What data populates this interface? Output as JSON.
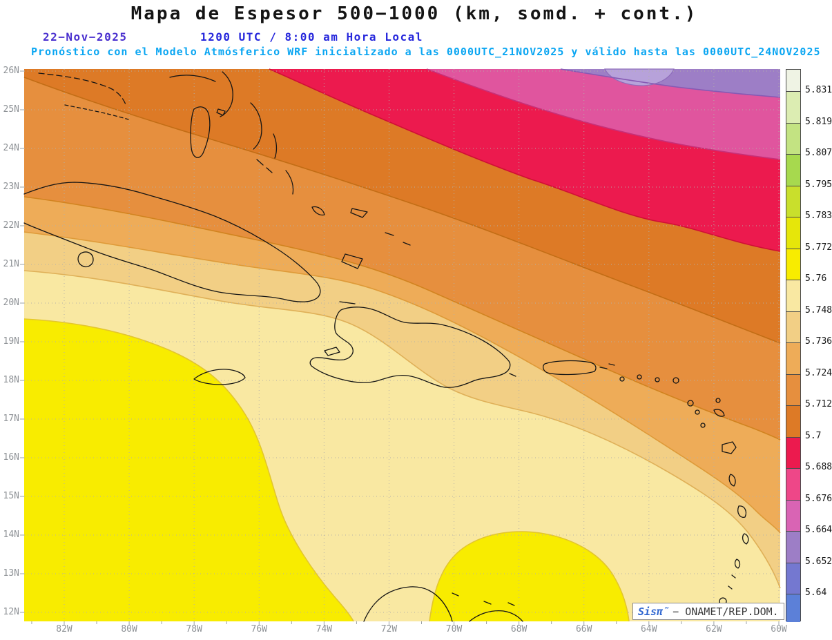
{
  "header": {
    "title": "Mapa de Espesor 500−1000 (km, somd. + cont.)",
    "date": "22−Nov−2025",
    "time": "1200 UTC / 8:00 am Hora Local",
    "forecast_line": "Pronóstico con el Modelo Atmósferico WRF inicializado a las 0000UTC_21NOV2025 y válido hasta las 0000UTC_24NOV2025"
  },
  "axes": {
    "lat_labels": [
      "26N",
      "25N",
      "24N",
      "23N",
      "22N",
      "21N",
      "20N",
      "19N",
      "18N",
      "17N",
      "16N",
      "15N",
      "14N",
      "13N",
      "12N"
    ],
    "lon_labels": [
      "82W",
      "80W",
      "78W",
      "76W",
      "74W",
      "72W",
      "70W",
      "68W",
      "66W",
      "64W",
      "62W",
      "60W"
    ]
  },
  "colorbar": {
    "tick_labels": [
      "5.831",
      "5.819",
      "5.807",
      "5.795",
      "5.783",
      "5.772",
      "5.76",
      "5.748",
      "5.736",
      "5.724",
      "5.712",
      "5.7",
      "5.688",
      "5.676",
      "5.664",
      "5.652",
      "5.64"
    ],
    "segment_colors_top_to_bottom": [
      "#eff3e4",
      "#dcedb2",
      "#c3e382",
      "#a7d94e",
      "#c9df2c",
      "#e6e60a",
      "#f8ec00",
      "#f9e8a2",
      "#f2cf85",
      "#eeac58",
      "#e68f3e",
      "#dd7a26",
      "#ec1a4e",
      "#ee4788",
      "#d964b4",
      "#9d7ec6",
      "#7478d0",
      "#5c80d8"
    ]
  },
  "chart_data": {
    "type": "heatmap",
    "variable": "Espesor 500−1000 (km, somd. + cont.)",
    "contour_interval": 0.012,
    "value_labels_top_to_bottom": [
      "5.831",
      "5.819",
      "5.807",
      "5.795",
      "5.783",
      "5.772",
      "5.76",
      "5.748",
      "5.736",
      "5.724",
      "5.712",
      "5.7",
      "5.688",
      "5.676",
      "5.664",
      "5.652",
      "5.64"
    ],
    "lat_range": [
      "12N",
      "26N"
    ],
    "lon_range": [
      "83W",
      "60W"
    ],
    "grid": "dotted, 1° lat × 2° lon labeled",
    "visible_bands_sw_to_ne": [
      {
        "value_range": "5.76–5.772",
        "color": "#f8ec00"
      },
      {
        "value_range": "5.748–5.76",
        "color": "#f9e8a2"
      },
      {
        "value_range": "5.736–5.748",
        "color": "#f2cf85"
      },
      {
        "value_range": "5.724–5.736",
        "color": "#eeac58"
      },
      {
        "value_range": "5.712–5.724",
        "color": "#e68f3e"
      },
      {
        "value_range": "5.7–5.712",
        "color": "#dd7a26"
      },
      {
        "value_range": "5.688–5.7",
        "color": "#ec1a4e"
      },
      {
        "value_range": "5.676–5.688",
        "color": "#e0559e"
      },
      {
        "value_range": "5.652–5.676",
        "color": "#9d7ec6"
      }
    ]
  },
  "branding": {
    "brand": "Sisπ̃",
    "rest": "− ONAMET/REP.DOM."
  }
}
